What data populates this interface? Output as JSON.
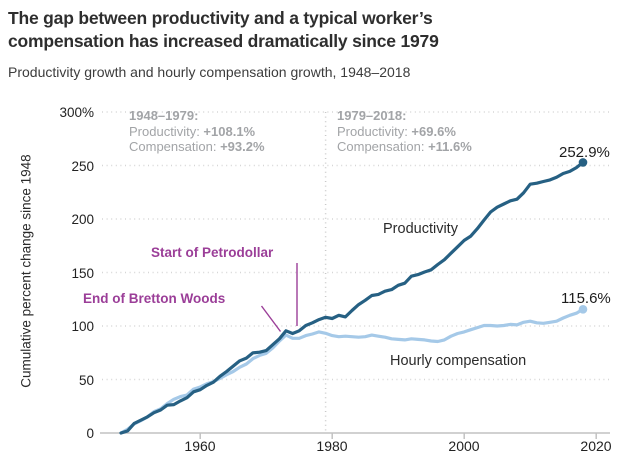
{
  "header": {
    "title_lines": [
      "The gap between productivity and a typical worker’s",
      "compensation has increased dramatically since 1979"
    ],
    "subtitle": "Productivity growth and hourly compensation growth, 1948–2018"
  },
  "period_notes": [
    {
      "heading": "1948–1979:",
      "rows": [
        {
          "label": "Productivity: ",
          "value": "+108.1%"
        },
        {
          "label": "Compensation: ",
          "value": "+93.2%"
        }
      ]
    },
    {
      "heading": "1979–2018:",
      "rows": [
        {
          "label": "Productivity: ",
          "value": "+69.6%"
        },
        {
          "label": "Compensation: ",
          "value": "+11.6%"
        }
      ]
    }
  ],
  "annotations": [
    {
      "text": "Start of Petrodollar"
    },
    {
      "text": "End of Bretton Woods"
    }
  ],
  "colors": {
    "productivity": "#266083",
    "compensation": "#a5c9e8",
    "annotation_purple": "#9b3e98",
    "note_gray": "#a2a4a7"
  },
  "chart_data": {
    "type": "line",
    "title": "The gap between productivity and a typical worker’s compensation has increased dramatically since 1979",
    "subtitle": "Productivity growth and hourly compensation growth, 1948–2018",
    "xlabel": "",
    "ylabel": "Cumulative percent change since 1948",
    "xlim": [
      1948,
      2020
    ],
    "ylim": [
      0,
      300
    ],
    "grid": "dotted-horizontal",
    "reference_line_x": 1979,
    "legend_position": "inline-labels",
    "y_tick_labels": [
      "300%",
      "250",
      "200",
      "150",
      "100",
      "50",
      "0"
    ],
    "y_tick_values": [
      300,
      250,
      200,
      150,
      100,
      50,
      0
    ],
    "x_tick_labels": [
      "1960",
      "1980",
      "2000",
      "2020"
    ],
    "x_tick_values": [
      1960,
      1980,
      2000,
      2020
    ],
    "x": [
      1948,
      1949,
      1950,
      1951,
      1952,
      1953,
      1954,
      1955,
      1956,
      1957,
      1958,
      1959,
      1960,
      1961,
      1962,
      1963,
      1964,
      1965,
      1966,
      1967,
      1968,
      1969,
      1970,
      1971,
      1972,
      1973,
      1974,
      1975,
      1976,
      1977,
      1978,
      1979,
      1980,
      1981,
      1982,
      1983,
      1984,
      1985,
      1986,
      1987,
      1988,
      1989,
      1990,
      1991,
      1992,
      1993,
      1994,
      1995,
      1996,
      1997,
      1998,
      1999,
      2000,
      2001,
      2002,
      2003,
      2004,
      2005,
      2006,
      2007,
      2008,
      2009,
      2010,
      2011,
      2012,
      2013,
      2014,
      2015,
      2016,
      2017,
      2018
    ],
    "series": [
      {
        "id": "compensation",
        "name": "Hourly compensation",
        "label": "Hourly compensation",
        "end_label": "115.6%",
        "color": "#a5c9e8",
        "values": [
          0,
          3.5,
          8.5,
          11.5,
          15,
          20,
          22.5,
          27.5,
          31.5,
          34,
          35.5,
          41,
          43,
          46,
          48,
          51,
          54.5,
          57.5,
          61.5,
          64.5,
          69.5,
          72.5,
          74.5,
          79.5,
          86,
          91.5,
          88.5,
          88.5,
          91,
          92.5,
          94.5,
          93.2,
          91,
          90,
          90.5,
          90,
          89.5,
          90,
          91.5,
          90.5,
          89.5,
          88,
          87.5,
          87,
          88,
          87.5,
          87,
          86,
          85.5,
          87,
          90.5,
          93,
          94.5,
          96.5,
          98.5,
          100.5,
          100.5,
          100,
          100.5,
          101.5,
          101,
          103.5,
          104.5,
          103,
          102.5,
          103.5,
          104.5,
          107.5,
          110,
          112,
          115.6
        ]
      },
      {
        "id": "productivity",
        "name": "Productivity",
        "label": "Productivity",
        "end_label": "252.9%",
        "color": "#266083",
        "values": [
          0,
          2,
          9,
          12,
          15,
          19,
          21.5,
          26,
          26.5,
          30,
          33,
          38.5,
          40.5,
          44.5,
          47.5,
          53,
          57.5,
          62.5,
          67.5,
          70,
          75,
          75.5,
          77,
          82.5,
          88,
          95.5,
          93,
          95.5,
          100.5,
          103,
          106,
          108.1,
          107,
          110,
          108.5,
          114.5,
          120,
          124,
          128.5,
          129.5,
          132.5,
          134,
          138,
          140,
          146.5,
          148,
          150.5,
          152.5,
          157.5,
          162,
          168,
          174,
          180,
          184,
          191,
          199,
          206.5,
          211,
          214,
          217,
          218.5,
          224.5,
          232.5,
          233.5,
          235,
          236.5,
          239,
          242.5,
          244.5,
          248,
          252.9
        ]
      }
    ]
  }
}
